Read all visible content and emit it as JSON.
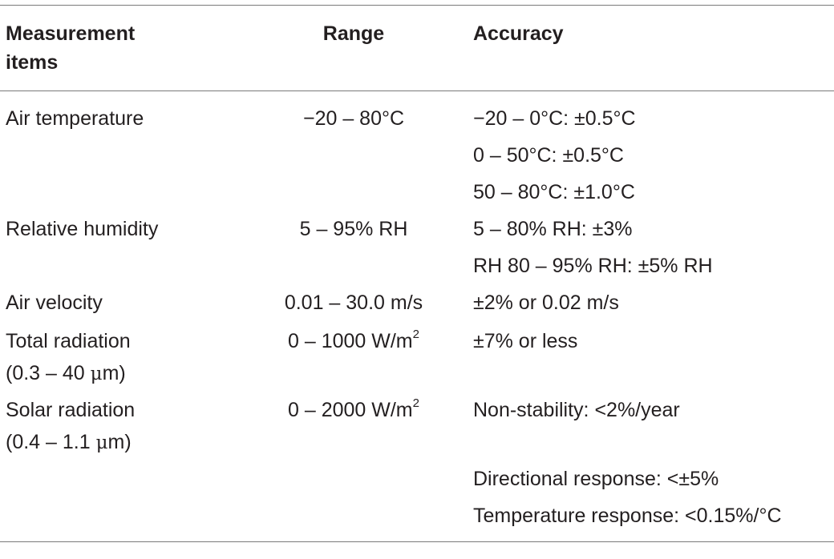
{
  "table": {
    "headers": {
      "col1": "Measurement items",
      "col2": "Range",
      "col3": "Accuracy"
    },
    "rows": [
      {
        "item": "Air temperature",
        "range": "−20 – 80°C",
        "accuracy": [
          "−20 – 0°C: ±0.5°C",
          "0 – 50°C: ±0.5°C",
          "50 – 80°C: ±1.0°C"
        ]
      },
      {
        "item": "Relative humidity",
        "range": "5 – 95% RH",
        "accuracy": [
          "5 – 80% RH: ±3%",
          "RH 80 – 95% RH: ±5% RH"
        ]
      },
      {
        "item": "Air velocity",
        "range": "0.01 – 30.0 m/s",
        "accuracy": [
          "±2% or 0.02 m/s"
        ]
      },
      {
        "item_line1": "Total radiation",
        "item_line2_pre": "(0.3 – 40 ",
        "item_line2_mu": "μ",
        "item_line2_post": "m)",
        "range_main": "0 – 1000 W/m",
        "range_sup": "2",
        "accuracy": [
          "±7% or less"
        ]
      },
      {
        "item_line1": "Solar radiation",
        "item_line2_pre": "(0.4 – 1.1 ",
        "item_line2_mu": "μ",
        "item_line2_post": "m)",
        "range_main": "0 – 2000 W/m",
        "range_sup": "2",
        "accuracy": [
          "Non-stability:  <2%/year",
          "Directional response:  <±5%",
          "Temperature response:  <0.15%/°C"
        ]
      }
    ]
  }
}
